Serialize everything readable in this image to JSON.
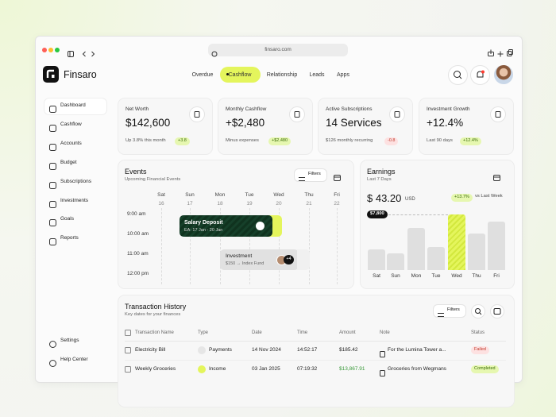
{
  "browser": {
    "url": "finsaro.com"
  },
  "app": {
    "name": "Finsaro"
  },
  "nav": [
    "Overdue",
    "Cashflow",
    "Relationship",
    "Leads",
    "Apps"
  ],
  "sidebar": {
    "main": [
      "Dashboard",
      "Cashflow",
      "Accounts",
      "Budget",
      "Subscriptions",
      "Investments",
      "Goals",
      "Reports"
    ],
    "bottom": [
      "Settings",
      "Help Center"
    ]
  },
  "cards": [
    {
      "title": "Net Worth",
      "value": "$142,600",
      "note": "Up 3.8% this month",
      "badge": "+3.8"
    },
    {
      "title": "Monthly Cashflow",
      "value": "+$2,480",
      "note": "Minus expenses",
      "badge": "+$2,480"
    },
    {
      "title": "Active Subscriptions",
      "value": "14 Services",
      "note": "$126 monthly recurring",
      "badge": "-0.8"
    },
    {
      "title": "Investment Growth",
      "value": "+12.4%",
      "note": "Last 90 days",
      "badge": "+12.4%"
    }
  ],
  "events": {
    "title": "Events",
    "subtitle": "Upcoming Financial Events",
    "filter_label": "Filters",
    "days": [
      {
        "day": "Sat",
        "date": 16
      },
      {
        "day": "Sun",
        "date": 17
      },
      {
        "day": "Mon",
        "date": 18
      },
      {
        "day": "Tue",
        "date": 19
      },
      {
        "day": "Wed",
        "date": 20
      },
      {
        "day": "Thu",
        "date": 21
      },
      {
        "day": "Fri",
        "date": 22
      }
    ],
    "times": [
      "9:00 am",
      "10:00 am",
      "11:00 am",
      "12:00 pm"
    ],
    "items": [
      {
        "title": "Salary Deposit",
        "detail": "EA: 17 Jan - 20 Jan"
      },
      {
        "title": "Investment",
        "detail": "$150 → Index Fund",
        "count": "+4"
      }
    ]
  },
  "earnings": {
    "title": "Earnings",
    "subtitle": "Last 7 Days",
    "amount": "$ 43.20",
    "currency": "USD",
    "change": "+13.7%",
    "compare": "vs Last Week",
    "categories": [
      "Sat",
      "Sun",
      "Mon",
      "Tue",
      "Wed",
      "Thu",
      "Fri"
    ],
    "values": [
      2900,
      2300,
      5900,
      3200,
      7800,
      5100,
      6800
    ],
    "value_labels": [
      null,
      null,
      null,
      null,
      "$7,800",
      null,
      null
    ]
  },
  "transactions": {
    "title": "Transaction History",
    "subtitle": "Key dates for your finances",
    "filter_label": "Filters",
    "columns": [
      "Transaction Name",
      "Type",
      "Date",
      "Time",
      "Amount",
      "Note",
      "Status"
    ],
    "rows": [
      [
        "Electricity Bill",
        "Payments",
        "14 Nov 2024",
        "14:52:17",
        "$185.42",
        "For the Lumina Tower a...",
        "Failed"
      ],
      [
        "Weekly Groceries",
        "Income",
        "03 Jan 2025",
        "07:19:32",
        "$13,867.91",
        "Groceries from Wegmans",
        "Completed"
      ]
    ]
  }
}
